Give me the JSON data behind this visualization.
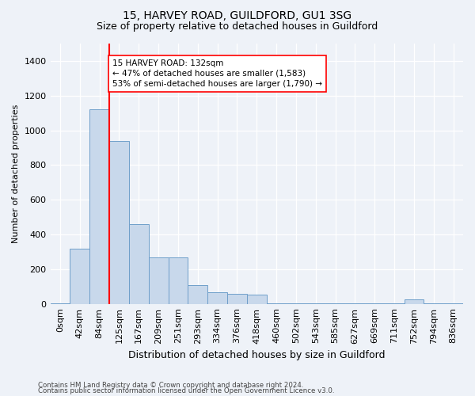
{
  "title1": "15, HARVEY ROAD, GUILDFORD, GU1 3SG",
  "title2": "Size of property relative to detached houses in Guildford",
  "xlabel": "Distribution of detached houses by size in Guildford",
  "ylabel": "Number of detached properties",
  "bin_labels": [
    "0sqm",
    "42sqm",
    "84sqm",
    "125sqm",
    "167sqm",
    "209sqm",
    "251sqm",
    "293sqm",
    "334sqm",
    "376sqm",
    "418sqm",
    "460sqm",
    "502sqm",
    "543sqm",
    "585sqm",
    "627sqm",
    "669sqm",
    "711sqm",
    "752sqm",
    "794sqm",
    "836sqm"
  ],
  "bar_values": [
    5,
    320,
    1120,
    940,
    460,
    270,
    270,
    110,
    65,
    60,
    55,
    5,
    5,
    5,
    5,
    5,
    5,
    5,
    25,
    5,
    5
  ],
  "bar_color": "#c8d8eb",
  "bar_edge_color": "#6f9fca",
  "vline_color": "red",
  "vline_pos": 2.5,
  "annotation_text": "15 HARVEY ROAD: 132sqm\n← 47% of detached houses are smaller (1,583)\n53% of semi-detached houses are larger (1,790) →",
  "annotation_box_color": "white",
  "annotation_box_edge": "red",
  "ylim": [
    0,
    1500
  ],
  "yticks": [
    0,
    200,
    400,
    600,
    800,
    1000,
    1200,
    1400
  ],
  "footer1": "Contains HM Land Registry data © Crown copyright and database right 2024.",
  "footer2": "Contains public sector information licensed under the Open Government Licence v3.0.",
  "bg_color": "#eef2f8",
  "grid_color": "#ffffff",
  "title1_fontsize": 10,
  "title2_fontsize": 9,
  "ylabel_fontsize": 8,
  "xlabel_fontsize": 9,
  "tick_fontsize": 8,
  "annotation_fontsize": 7.5,
  "footer_fontsize": 6.2
}
